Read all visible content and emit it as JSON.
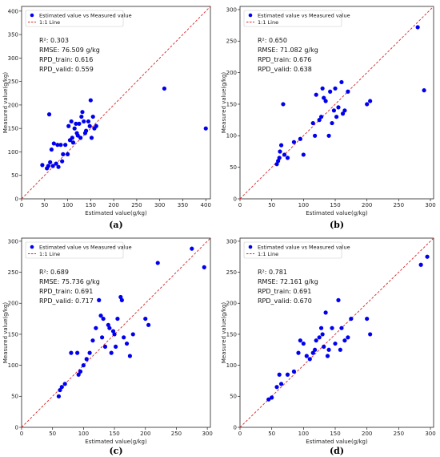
{
  "chart_data": [
    {
      "type": "scatter",
      "caption": "(a)",
      "xlabel": "Estimated value(g/kg)",
      "ylabel": "Measured value(g/kg)",
      "xlim": [
        0,
        410
      ],
      "ylim": [
        0,
        410
      ],
      "xticks": [
        0,
        50,
        100,
        150,
        200,
        250,
        300,
        350,
        400
      ],
      "yticks": [
        0,
        50,
        100,
        150,
        200,
        250,
        300,
        350,
        400
      ],
      "legend": [
        "Estimated value vs Measured value",
        "1:1 Line"
      ],
      "legend_position": "top-left",
      "stats": [
        "R²: 0.303",
        "RMSE: 76.509 g/kg",
        "RPD_train: 0.616",
        "RPD_valid: 0.559"
      ],
      "series": [
        {
          "name": "Estimated value vs Measured value",
          "x": [
            45,
            55,
            58,
            60,
            62,
            65,
            68,
            70,
            75,
            78,
            80,
            85,
            88,
            90,
            95,
            100,
            102,
            105,
            108,
            110,
            112,
            115,
            118,
            120,
            122,
            125,
            128,
            130,
            132,
            135,
            138,
            140,
            145,
            148,
            150,
            152,
            155,
            158,
            162,
            310,
            400
          ],
          "y": [
            72,
            65,
            70,
            180,
            78,
            105,
            70,
            118,
            75,
            115,
            68,
            115,
            80,
            95,
            115,
            95,
            155,
            125,
            165,
            130,
            120,
            150,
            160,
            140,
            135,
            160,
            130,
            175,
            185,
            165,
            140,
            145,
            165,
            155,
            210,
            130,
            175,
            150,
            155,
            235,
            150
          ]
        }
      ]
    },
    {
      "type": "scatter",
      "caption": "(b)",
      "xlabel": "Estimated value(g/kg)",
      "ylabel": "Measured value(g/kg)",
      "xlim": [
        0,
        305
      ],
      "ylim": [
        0,
        305
      ],
      "xticks": [
        0,
        50,
        100,
        150,
        200,
        250,
        300
      ],
      "yticks": [
        0,
        50,
        100,
        150,
        200,
        250,
        300
      ],
      "legend": [
        "Estimated value vs Measured value",
        "1:1 Line"
      ],
      "legend_position": "top-left",
      "stats": [
        "R²: 0.650",
        "RMSE: 71.082 g/kg",
        "RPD_train: 0.676",
        "RPD_valid: 0.638"
      ],
      "series": [
        {
          "name": "Estimated value vs Measured value",
          "x": [
            58,
            60,
            62,
            63,
            65,
            68,
            70,
            75,
            85,
            95,
            100,
            115,
            118,
            120,
            125,
            128,
            130,
            132,
            135,
            140,
            142,
            145,
            148,
            150,
            152,
            155,
            160,
            162,
            165,
            170,
            200,
            205,
            280,
            290
          ],
          "y": [
            55,
            60,
            65,
            75,
            85,
            150,
            70,
            65,
            90,
            95,
            70,
            120,
            100,
            165,
            125,
            130,
            175,
            160,
            155,
            100,
            170,
            120,
            140,
            175,
            130,
            145,
            185,
            135,
            140,
            170,
            150,
            155,
            272,
            172
          ]
        }
      ]
    },
    {
      "type": "scatter",
      "caption": "(c)",
      "xlabel": "Estimated value(g/kg)",
      "ylabel": "Measured value(g/kg)",
      "xlim": [
        0,
        305
      ],
      "ylim": [
        0,
        305
      ],
      "xticks": [
        0,
        50,
        100,
        150,
        200,
        250,
        300
      ],
      "yticks": [
        0,
        50,
        100,
        150,
        200,
        250,
        300
      ],
      "legend": [
        "Estimated value vs Measured value",
        "1:1 Line"
      ],
      "legend_position": "top-left",
      "stats": [
        "R²: 0.689",
        "RMSE: 75.736 g/kg",
        "RPD_train: 0.691",
        "RPD_valid: 0.717"
      ],
      "series": [
        {
          "name": "Estimated value vs Measured value",
          "x": [
            60,
            62,
            65,
            70,
            80,
            90,
            92,
            95,
            100,
            105,
            110,
            115,
            120,
            125,
            128,
            130,
            132,
            135,
            140,
            142,
            145,
            148,
            150,
            152,
            155,
            160,
            162,
            165,
            170,
            175,
            180,
            200,
            205,
            220,
            275,
            295
          ],
          "y": [
            50,
            60,
            65,
            70,
            120,
            120,
            85,
            90,
            100,
            110,
            120,
            140,
            160,
            205,
            180,
            145,
            175,
            130,
            165,
            160,
            120,
            155,
            150,
            130,
            175,
            210,
            205,
            145,
            135,
            115,
            150,
            175,
            165,
            265,
            288,
            258
          ]
        }
      ]
    },
    {
      "type": "scatter",
      "caption": "(d)",
      "xlabel": "Estimated value(g/kg)",
      "ylabel": "Measured value(g/kg)",
      "xlim": [
        0,
        305
      ],
      "ylim": [
        0,
        305
      ],
      "xticks": [
        0,
        50,
        100,
        150,
        200,
        250,
        300
      ],
      "yticks": [
        0,
        50,
        100,
        150,
        200,
        250,
        300
      ],
      "legend": [
        "Estimated value vs Measured value",
        "1:1 Line"
      ],
      "legend_position": "top-left",
      "stats": [
        "R²: 0.781",
        "RMSE: 72.161 g/kg",
        "RPD_train: 0.691",
        "RPD_valid: 0.670"
      ],
      "series": [
        {
          "name": "Estimated value vs Measured value",
          "x": [
            45,
            50,
            58,
            62,
            65,
            75,
            85,
            92,
            95,
            100,
            105,
            110,
            115,
            118,
            120,
            125,
            128,
            130,
            132,
            135,
            138,
            140,
            145,
            150,
            155,
            158,
            160,
            165,
            170,
            175,
            200,
            205,
            285,
            295
          ],
          "y": [
            45,
            48,
            65,
            85,
            70,
            85,
            90,
            120,
            140,
            135,
            115,
            110,
            120,
            125,
            140,
            145,
            160,
            150,
            130,
            185,
            115,
            125,
            160,
            135,
            205,
            125,
            160,
            140,
            145,
            175,
            175,
            150,
            262,
            275
          ]
        }
      ]
    }
  ]
}
